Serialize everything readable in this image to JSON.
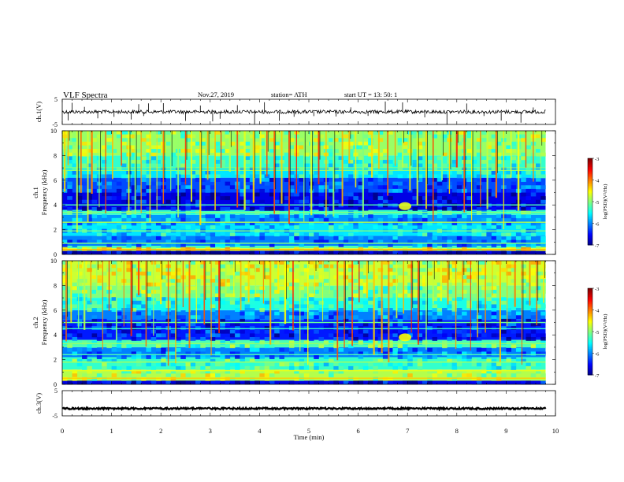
{
  "header": {
    "title": "VLF  Spectra",
    "date": "Nov.27, 2019",
    "station": "station= ATH",
    "start": "start  UT  =   13: 50: 1"
  },
  "chart_data": [
    {
      "type": "line",
      "name": "ch1-waveform",
      "ylabel": "ch.1(V)",
      "ylim": [
        -5,
        5
      ],
      "yticks": [
        "5",
        "-5"
      ],
      "xlim": [
        0,
        10
      ],
      "baseline": 0,
      "spike_times": [
        0.12,
        0.2,
        0.45,
        0.72,
        1.05,
        1.4,
        1.55,
        1.65,
        1.75,
        2.05,
        2.5,
        2.8,
        3.05,
        3.2,
        3.55,
        3.9,
        4.1,
        4.4,
        4.7,
        5.1,
        5.55,
        5.85,
        6.2,
        6.55,
        6.9,
        7.35,
        7.8,
        8.2,
        8.55,
        8.9,
        9.3,
        9.55
      ]
    },
    {
      "type": "heatmap",
      "name": "ch1-spectrogram",
      "ylabel": "ch.1\nFrequency  (kHz)",
      "ylim": [
        0,
        10
      ],
      "yticks": [
        "0",
        "2",
        "4",
        "6",
        "8",
        "10"
      ],
      "xlim": [
        0,
        9.8
      ],
      "colorbar": {
        "label": "log(PSD)(V²/Hz)",
        "ticks": [
          "-3",
          "-4",
          "-5",
          "-6",
          "-7"
        ],
        "range": [
          -7,
          -3
        ]
      },
      "bands": [
        {
          "f0": 0,
          "f1": 0.3,
          "level": -6.8
        },
        {
          "f0": 0.3,
          "f1": 0.5,
          "level": -4.6
        },
        {
          "f0": 0.5,
          "f1": 0.7,
          "level": -5.2
        },
        {
          "f0": 0.7,
          "f1": 1.5,
          "level": -6.0
        },
        {
          "f0": 1.5,
          "f1": 2.5,
          "level": -5.6
        },
        {
          "f0": 2.5,
          "f1": 3.2,
          "level": -5.9
        },
        {
          "f0": 3.2,
          "f1": 3.6,
          "level": -5.3
        },
        {
          "f0": 3.6,
          "f1": 5.0,
          "level": -6.6
        },
        {
          "f0": 5.0,
          "f1": 6.2,
          "level": -6.2
        },
        {
          "f0": 6.2,
          "f1": 7.0,
          "level": -5.6
        },
        {
          "f0": 7.0,
          "f1": 8.0,
          "level": -5.3
        },
        {
          "f0": 8.0,
          "f1": 10.0,
          "level": -4.9
        }
      ],
      "hlines": [
        {
          "f": 0.4,
          "level": -4.2
        },
        {
          "f": 0.9,
          "level": -5.0
        },
        {
          "f": 1.9,
          "level": -5.0
        },
        {
          "f": 2.6,
          "level": -4.8
        },
        {
          "f": 3.4,
          "level": -5.0
        },
        {
          "f": 4.0,
          "level": -5.2
        },
        {
          "f": 6.8,
          "level": -5.0
        },
        {
          "f": 7.0,
          "level": -5.0
        }
      ],
      "sferic_times": [
        0.05,
        0.12,
        0.3,
        0.38,
        0.52,
        0.6,
        0.75,
        0.88,
        1.02,
        1.2,
        1.35,
        1.48,
        1.6,
        1.78,
        1.92,
        2.05,
        2.2,
        2.35,
        2.5,
        2.62,
        2.8,
        2.95,
        3.1,
        3.22,
        3.4,
        3.55,
        3.7,
        3.88,
        4.02,
        4.15,
        4.3,
        4.45,
        4.6,
        4.75,
        4.9,
        5.05,
        5.2,
        5.35,
        5.5,
        5.68,
        5.82,
        5.95,
        6.1,
        6.28,
        6.42,
        6.6,
        6.75,
        6.9,
        7.05,
        7.2,
        7.38,
        7.52,
        7.7,
        7.85,
        8.0,
        8.15,
        8.3,
        8.48,
        8.62,
        8.8,
        8.95,
        9.1,
        9.25,
        9.4,
        9.55,
        9.7
      ],
      "blob": {
        "t": 6.95,
        "f": 3.9,
        "level": -4.6
      }
    },
    {
      "type": "heatmap",
      "name": "ch2-spectrogram",
      "ylabel": "ch.2\nFrequency  (kHz)",
      "ylim": [
        0,
        10
      ],
      "yticks": [
        "0",
        "2",
        "4",
        "6",
        "8",
        "10"
      ],
      "xlim": [
        0,
        9.8
      ],
      "colorbar": {
        "label": "log(PSD)(V²/Hz)",
        "ticks": [
          "-3",
          "-4",
          "-5",
          "-6",
          "-7"
        ],
        "range": [
          -7,
          -3
        ]
      },
      "bands": [
        {
          "f0": 0,
          "f1": 0.3,
          "level": -6.6
        },
        {
          "f0": 0.3,
          "f1": 1.2,
          "level": -4.8
        },
        {
          "f0": 1.2,
          "f1": 2.2,
          "level": -5.3
        },
        {
          "f0": 2.2,
          "f1": 3.0,
          "level": -6.0
        },
        {
          "f0": 3.0,
          "f1": 3.6,
          "level": -5.2
        },
        {
          "f0": 3.6,
          "f1": 5.2,
          "level": -6.4
        },
        {
          "f0": 5.2,
          "f1": 6.0,
          "level": -6.0
        },
        {
          "f0": 6.0,
          "f1": 7.0,
          "level": -5.4
        },
        {
          "f0": 7.0,
          "f1": 8.0,
          "level": -5.0
        },
        {
          "f0": 8.0,
          "f1": 10.0,
          "level": -4.7
        }
      ],
      "hlines": [
        {
          "f": 0.5,
          "level": -4.3
        },
        {
          "f": 1.1,
          "level": -4.6
        },
        {
          "f": 1.8,
          "level": -4.9
        },
        {
          "f": 2.4,
          "level": -5.2
        },
        {
          "f": 3.3,
          "level": -4.9
        },
        {
          "f": 4.5,
          "level": -5.3
        },
        {
          "f": 5.0,
          "level": -5.1
        }
      ],
      "sferic_times": [
        0.08,
        0.18,
        0.33,
        0.45,
        0.58,
        0.7,
        0.82,
        0.95,
        1.1,
        1.25,
        1.4,
        1.55,
        1.7,
        1.85,
        2.0,
        2.15,
        2.3,
        2.45,
        2.58,
        2.72,
        2.88,
        3.02,
        3.18,
        3.32,
        3.48,
        3.62,
        3.78,
        3.92,
        4.08,
        4.22,
        4.38,
        4.52,
        4.68,
        4.82,
        4.98,
        5.12,
        5.28,
        5.42,
        5.58,
        5.72,
        5.88,
        6.02,
        6.18,
        6.32,
        6.48,
        6.62,
        6.78,
        6.92,
        7.08,
        7.22,
        7.38,
        7.52,
        7.68,
        7.82,
        7.98,
        8.12,
        8.28,
        8.42,
        8.58,
        8.72,
        8.88,
        9.02,
        9.18,
        9.32,
        9.48,
        9.62,
        9.76
      ],
      "blob": {
        "t": 6.95,
        "f": 3.8,
        "level": -4.5
      }
    },
    {
      "type": "line",
      "name": "ch3-waveform",
      "ylabel": "ch.3(V)",
      "ylim": [
        -5,
        5
      ],
      "yticks": [
        "5",
        "-5"
      ],
      "xlim": [
        0,
        10
      ],
      "baseline": -2.1,
      "xlabel": "Time  (min)",
      "xticks": [
        "0",
        "1",
        "2",
        "3",
        "4",
        "5",
        "6",
        "7",
        "8",
        "9",
        "10"
      ]
    }
  ]
}
